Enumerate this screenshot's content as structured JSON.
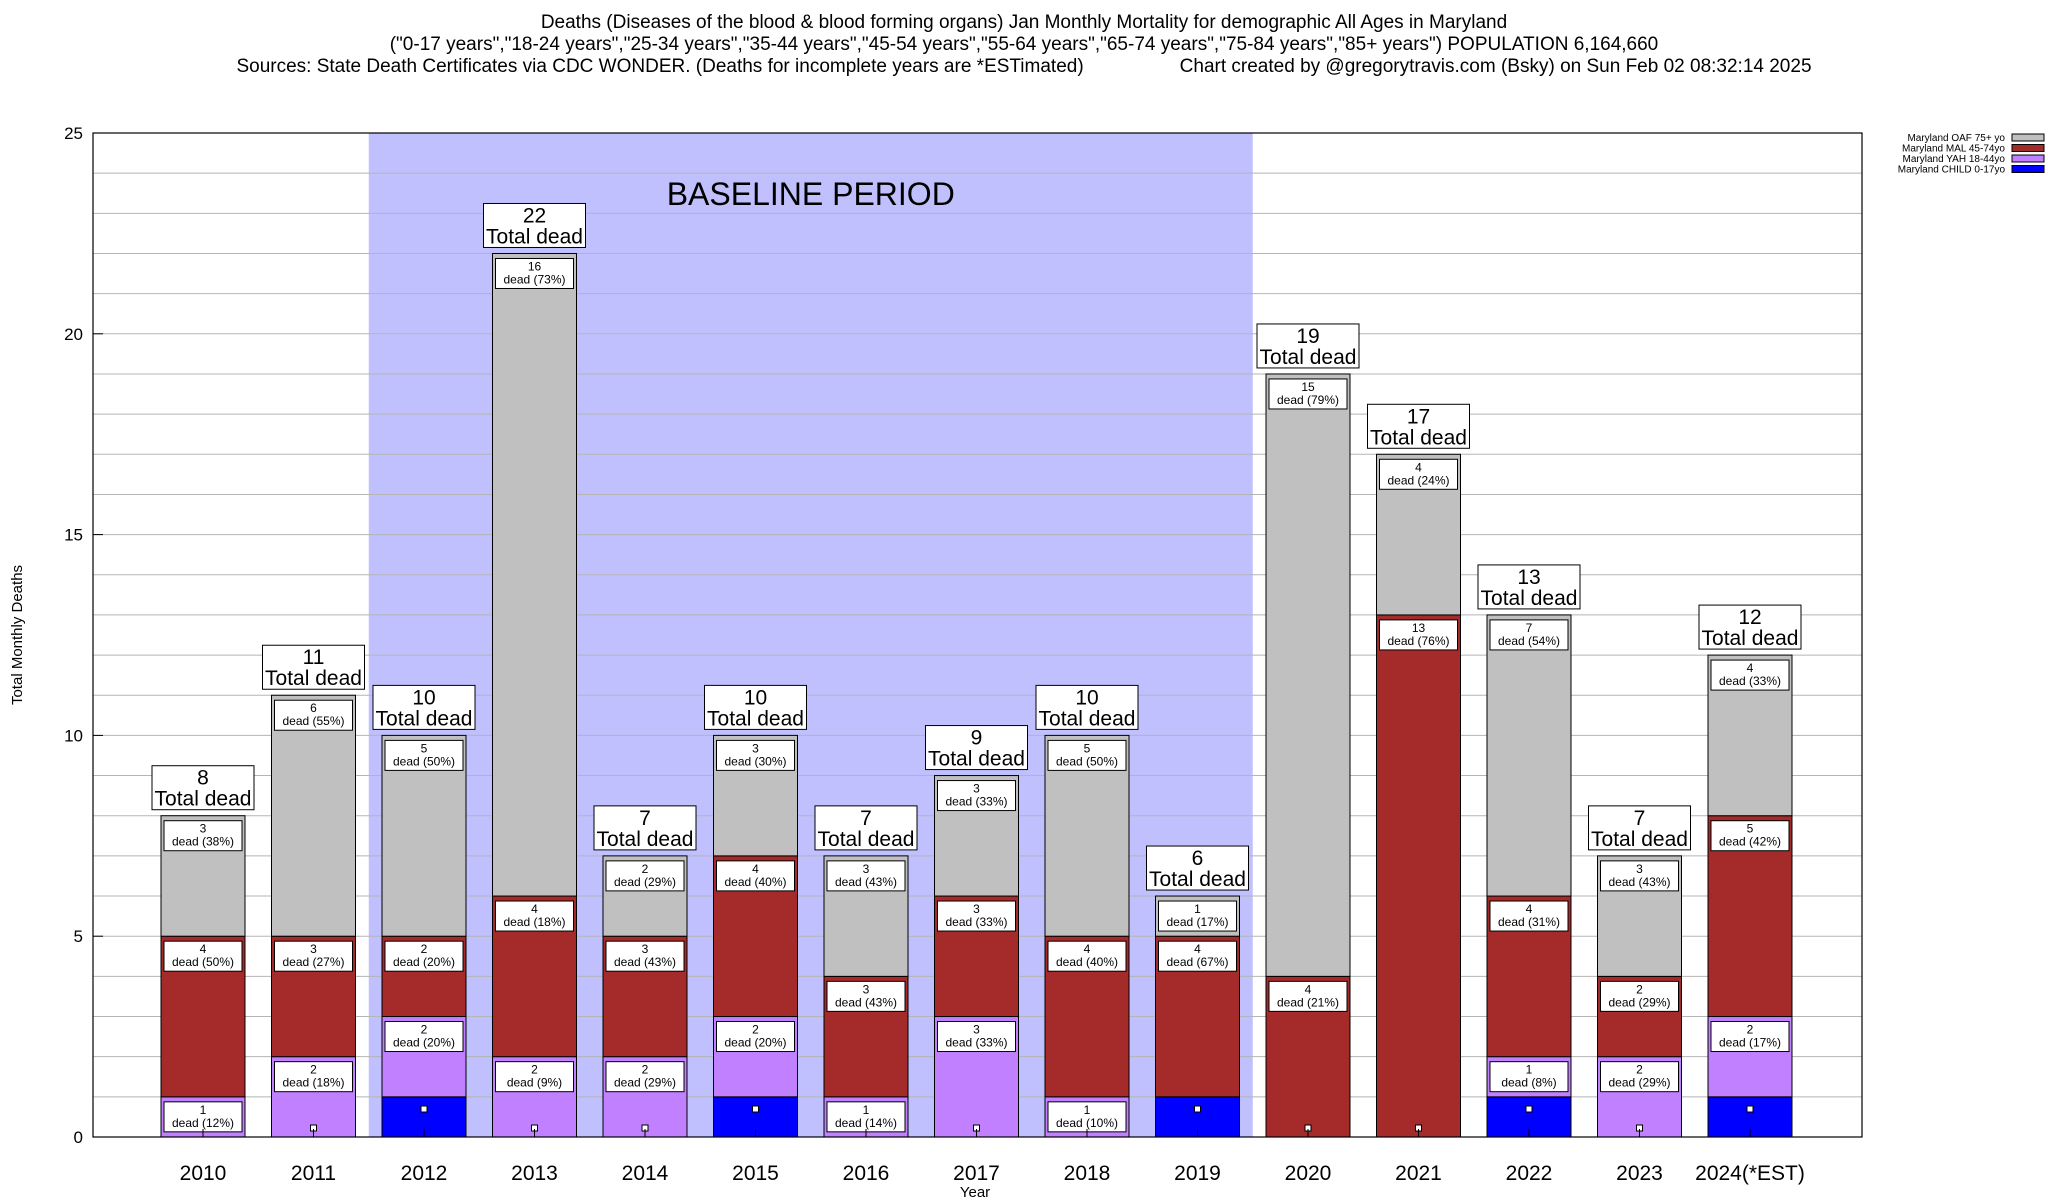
{
  "chart_data": {
    "type": "bar",
    "stacked": true,
    "title": "Deaths (Diseases of the blood & blood forming organs) Jan Monthly Mortality for demographic All Ages in Maryland",
    "subtitle": "(\"0-17 years\",\"18-24 years\",\"25-34 years\",\"35-44 years\",\"45-54 years\",\"55-64 years\",\"65-74 years\",\"75-84 years\",\"85+ years\") POPULATION 6,164,660",
    "sources": "Sources: State Death Certificates via CDC WONDER. (Deaths for incomplete years are *ESTimated)",
    "credit": "Chart created by @gregorytravis.com (Bsky) on Sun Feb 02 08:32:14 2025",
    "xlabel": "Year",
    "ylabel": "Total Monthly Deaths",
    "ylim": [
      0,
      25
    ],
    "yticks": [
      0,
      5,
      10,
      15,
      20,
      25
    ],
    "grid": true,
    "legend_position": "top-right",
    "baseline_label": "BASELINE PERIOD",
    "baseline_range": [
      "2012",
      "2019"
    ],
    "total_label": "Total dead",
    "segment_word": "dead",
    "categories": [
      "2010",
      "2011",
      "2012",
      "2013",
      "2014",
      "2015",
      "2016",
      "2017",
      "2018",
      "2019",
      "2020",
      "2021",
      "2022",
      "2023",
      "2024(*EST)"
    ],
    "totals": [
      8,
      11,
      10,
      22,
      7,
      10,
      7,
      9,
      10,
      6,
      19,
      17,
      13,
      7,
      12
    ],
    "series": [
      {
        "name": "Maryland CHILD 0-17yo",
        "color": "#0000ff",
        "values": [
          0,
          0,
          1,
          0,
          0,
          1,
          0,
          0,
          0,
          1,
          0,
          0,
          1,
          0,
          1
        ],
        "pct": [
          "",
          "",
          "",
          "",
          "",
          "",
          "",
          "",
          "",
          "",
          "",
          "",
          "",
          "",
          ""
        ]
      },
      {
        "name": "Maryland YAH 18-44yo",
        "color": "#c080ff",
        "values": [
          1,
          2,
          2,
          2,
          2,
          2,
          1,
          3,
          1,
          0,
          0,
          0,
          1,
          2,
          2
        ],
        "pct": [
          "12%",
          "18%",
          "20%",
          "9%",
          "29%",
          "20%",
          "14%",
          "33%",
          "10%",
          "",
          "",
          "",
          "8%",
          "29%",
          "17%"
        ]
      },
      {
        "name": "Maryland MAL 45-74yo",
        "color": "#a52a2a",
        "values": [
          4,
          3,
          2,
          4,
          3,
          4,
          3,
          3,
          4,
          4,
          4,
          13,
          4,
          2,
          5
        ],
        "pct": [
          "50%",
          "27%",
          "20%",
          "18%",
          "43%",
          "40%",
          "43%",
          "33%",
          "40%",
          "67%",
          "21%",
          "76%",
          "31%",
          "29%",
          "42%"
        ]
      },
      {
        "name": "Maryland OAF 75+ yo",
        "color": "#c0c0c0",
        "values": [
          3,
          6,
          5,
          16,
          2,
          3,
          3,
          3,
          5,
          1,
          15,
          4,
          7,
          3,
          4
        ],
        "pct": [
          "38%",
          "55%",
          "50%",
          "73%",
          "29%",
          "30%",
          "43%",
          "33%",
          "50%",
          "17%",
          "79%",
          "24%",
          "54%",
          "43%",
          "33%"
        ]
      }
    ]
  }
}
